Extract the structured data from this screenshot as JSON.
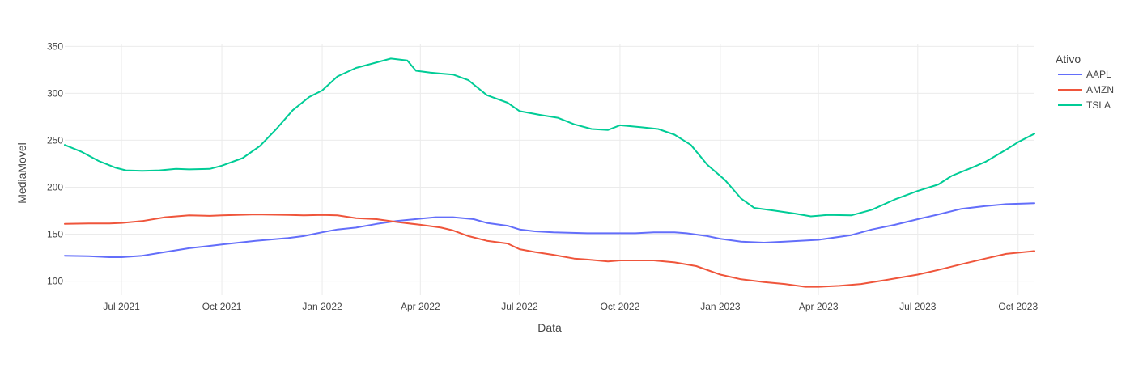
{
  "chart_data": {
    "type": "line",
    "title": "",
    "xlabel": "Data",
    "ylabel": "MediaMovel",
    "legend_title": "Ativo",
    "legend_position": "top-right",
    "grid": true,
    "xlim": [
      "2021-05-10",
      "2023-10-16"
    ],
    "ylim": [
      85,
      352
    ],
    "x_ticks": [
      {
        "date": "2021-07-01",
        "label": "Jul 2021"
      },
      {
        "date": "2021-10-01",
        "label": "Oct 2021"
      },
      {
        "date": "2022-01-01",
        "label": "Jan 2022"
      },
      {
        "date": "2022-04-01",
        "label": "Apr 2022"
      },
      {
        "date": "2022-07-01",
        "label": "Jul 2022"
      },
      {
        "date": "2022-10-01",
        "label": "Oct 2022"
      },
      {
        "date": "2023-01-01",
        "label": "Jan 2023"
      },
      {
        "date": "2023-04-01",
        "label": "Apr 2023"
      },
      {
        "date": "2023-07-01",
        "label": "Jul 2023"
      },
      {
        "date": "2023-10-01",
        "label": "Oct 2023"
      }
    ],
    "y_ticks": [
      100,
      150,
      200,
      250,
      300,
      350
    ],
    "series": [
      {
        "name": "AAPL",
        "color": "#636efa",
        "points": [
          [
            "2021-05-10",
            127
          ],
          [
            "2021-06-01",
            126.5
          ],
          [
            "2021-06-20",
            125.5
          ],
          [
            "2021-07-01",
            125.5
          ],
          [
            "2021-07-20",
            127
          ],
          [
            "2021-08-10",
            131
          ],
          [
            "2021-09-01",
            135
          ],
          [
            "2021-09-20",
            137.5
          ],
          [
            "2021-10-01",
            139
          ],
          [
            "2021-11-01",
            143
          ],
          [
            "2021-12-01",
            146
          ],
          [
            "2021-12-15",
            148
          ],
          [
            "2022-01-01",
            152
          ],
          [
            "2022-01-15",
            155
          ],
          [
            "2022-02-01",
            157
          ],
          [
            "2022-02-20",
            161
          ],
          [
            "2022-03-10",
            164
          ],
          [
            "2022-04-01",
            166.5
          ],
          [
            "2022-04-15",
            168
          ],
          [
            "2022-05-01",
            168
          ],
          [
            "2022-05-20",
            166
          ],
          [
            "2022-06-01",
            162
          ],
          [
            "2022-06-20",
            159
          ],
          [
            "2022-07-01",
            155
          ],
          [
            "2022-07-15",
            153
          ],
          [
            "2022-08-01",
            152
          ],
          [
            "2022-09-01",
            151
          ],
          [
            "2022-10-01",
            151
          ],
          [
            "2022-10-15",
            151
          ],
          [
            "2022-11-01",
            152
          ],
          [
            "2022-11-20",
            152
          ],
          [
            "2022-12-01",
            151
          ],
          [
            "2022-12-20",
            148
          ],
          [
            "2023-01-01",
            145
          ],
          [
            "2023-01-20",
            142
          ],
          [
            "2023-02-10",
            141
          ],
          [
            "2023-03-01",
            142
          ],
          [
            "2023-04-01",
            144
          ],
          [
            "2023-05-01",
            149
          ],
          [
            "2023-05-20",
            155
          ],
          [
            "2023-06-10",
            160
          ],
          [
            "2023-07-01",
            166
          ],
          [
            "2023-07-20",
            171
          ],
          [
            "2023-08-10",
            177
          ],
          [
            "2023-09-01",
            180
          ],
          [
            "2023-09-20",
            182
          ],
          [
            "2023-10-16",
            183
          ]
        ]
      },
      {
        "name": "AMZN",
        "color": "#ef553b",
        "points": [
          [
            "2021-05-10",
            161
          ],
          [
            "2021-06-01",
            161.5
          ],
          [
            "2021-06-20",
            161.5
          ],
          [
            "2021-07-01",
            162
          ],
          [
            "2021-07-20",
            164
          ],
          [
            "2021-08-10",
            168
          ],
          [
            "2021-09-01",
            170
          ],
          [
            "2021-09-20",
            169.5
          ],
          [
            "2021-10-01",
            170
          ],
          [
            "2021-11-01",
            171
          ],
          [
            "2021-12-01",
            170.5
          ],
          [
            "2021-12-15",
            170
          ],
          [
            "2022-01-01",
            170.5
          ],
          [
            "2022-01-15",
            170
          ],
          [
            "2022-02-01",
            167
          ],
          [
            "2022-02-20",
            166
          ],
          [
            "2022-03-10",
            163
          ],
          [
            "2022-04-01",
            160
          ],
          [
            "2022-04-20",
            157
          ],
          [
            "2022-05-01",
            154
          ],
          [
            "2022-05-15",
            148
          ],
          [
            "2022-06-01",
            143
          ],
          [
            "2022-06-20",
            140
          ],
          [
            "2022-07-01",
            134
          ],
          [
            "2022-07-15",
            131
          ],
          [
            "2022-08-01",
            128
          ],
          [
            "2022-08-20",
            124
          ],
          [
            "2022-09-01",
            123
          ],
          [
            "2022-09-20",
            121
          ],
          [
            "2022-10-01",
            122
          ],
          [
            "2022-10-15",
            122
          ],
          [
            "2022-11-01",
            122
          ],
          [
            "2022-11-20",
            120
          ],
          [
            "2022-12-10",
            116
          ],
          [
            "2023-01-01",
            107
          ],
          [
            "2023-01-20",
            102
          ],
          [
            "2023-02-10",
            99
          ],
          [
            "2023-03-01",
            97
          ],
          [
            "2023-03-20",
            94
          ],
          [
            "2023-04-01",
            94
          ],
          [
            "2023-04-20",
            95
          ],
          [
            "2023-05-10",
            97
          ],
          [
            "2023-06-01",
            101
          ],
          [
            "2023-07-01",
            107
          ],
          [
            "2023-07-20",
            112
          ],
          [
            "2023-08-10",
            118
          ],
          [
            "2023-09-01",
            124
          ],
          [
            "2023-09-20",
            129
          ],
          [
            "2023-10-16",
            132
          ]
        ]
      },
      {
        "name": "TSLA",
        "color": "#00cc96",
        "points": [
          [
            "2021-05-10",
            245
          ],
          [
            "2021-05-25",
            238
          ],
          [
            "2021-06-10",
            228
          ],
          [
            "2021-06-25",
            221
          ],
          [
            "2021-07-05",
            218
          ],
          [
            "2021-07-20",
            217.5
          ],
          [
            "2021-08-05",
            218
          ],
          [
            "2021-08-20",
            219.5
          ],
          [
            "2021-09-01",
            219
          ],
          [
            "2021-09-20",
            219.5
          ],
          [
            "2021-10-01",
            223
          ],
          [
            "2021-10-20",
            231
          ],
          [
            "2021-11-05",
            244
          ],
          [
            "2021-11-20",
            262
          ],
          [
            "2021-12-05",
            282
          ],
          [
            "2021-12-20",
            296
          ],
          [
            "2022-01-01",
            303
          ],
          [
            "2022-01-15",
            318
          ],
          [
            "2022-02-01",
            327
          ],
          [
            "2022-02-20",
            333
          ],
          [
            "2022-03-05",
            337
          ],
          [
            "2022-03-20",
            335
          ],
          [
            "2022-03-28",
            324
          ],
          [
            "2022-04-10",
            322
          ],
          [
            "2022-04-20",
            321
          ],
          [
            "2022-05-01",
            320
          ],
          [
            "2022-05-15",
            314
          ],
          [
            "2022-06-01",
            298
          ],
          [
            "2022-06-20",
            290
          ],
          [
            "2022-07-01",
            281
          ],
          [
            "2022-07-20",
            277
          ],
          [
            "2022-08-05",
            274
          ],
          [
            "2022-08-20",
            267
          ],
          [
            "2022-09-05",
            262
          ],
          [
            "2022-09-20",
            261
          ],
          [
            "2022-10-01",
            266
          ],
          [
            "2022-10-20",
            264
          ],
          [
            "2022-11-05",
            262
          ],
          [
            "2022-11-20",
            256
          ],
          [
            "2022-12-05",
            245
          ],
          [
            "2022-12-20",
            224
          ],
          [
            "2023-01-05",
            208
          ],
          [
            "2023-01-20",
            188
          ],
          [
            "2023-02-01",
            178
          ],
          [
            "2023-02-20",
            175
          ],
          [
            "2023-03-10",
            172
          ],
          [
            "2023-03-25",
            169
          ],
          [
            "2023-04-10",
            170.5
          ],
          [
            "2023-05-01",
            170
          ],
          [
            "2023-05-20",
            176
          ],
          [
            "2023-06-10",
            187
          ],
          [
            "2023-07-01",
            196
          ],
          [
            "2023-07-20",
            203
          ],
          [
            "2023-08-01",
            212
          ],
          [
            "2023-08-20",
            221
          ],
          [
            "2023-09-01",
            227
          ],
          [
            "2023-09-20",
            240
          ],
          [
            "2023-10-01",
            248
          ],
          [
            "2023-10-16",
            257
          ]
        ]
      }
    ]
  }
}
